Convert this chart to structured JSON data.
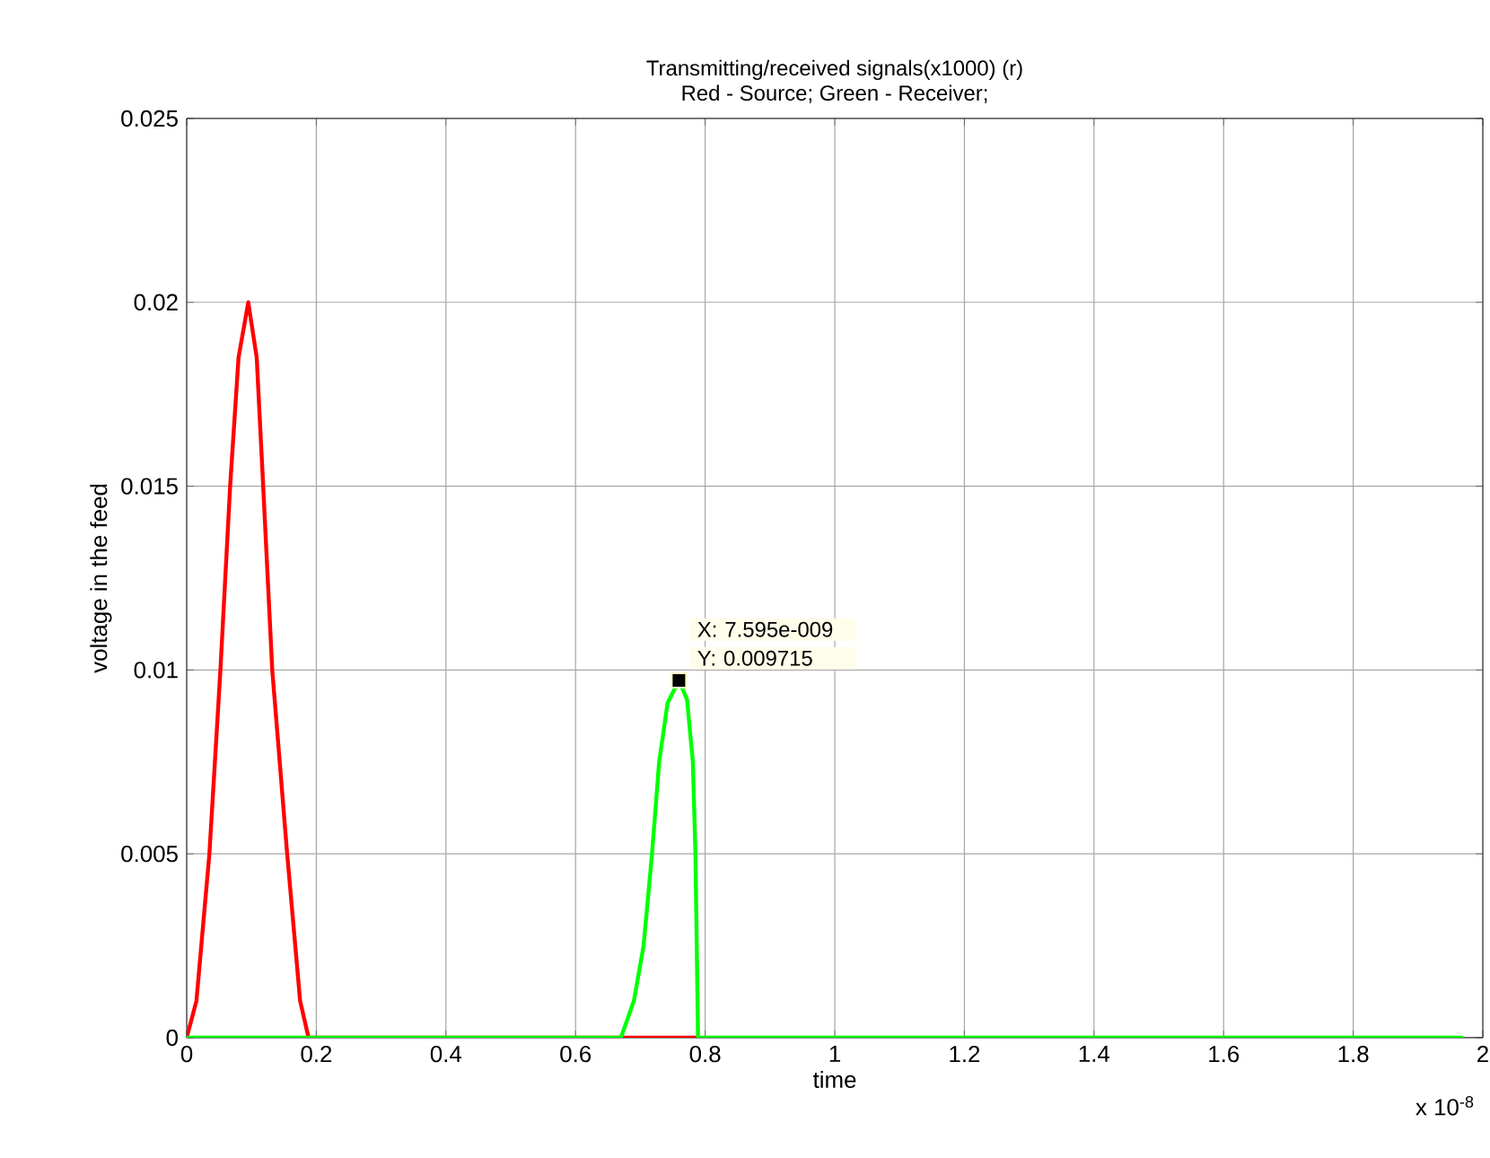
{
  "chart_data": {
    "type": "line",
    "title": "Transmitting/received signals(x1000) (r)",
    "subtitle": "Red - Source; Green - Receiver;",
    "xlabel": "time",
    "ylabel": "voltage in the feed",
    "series": [
      {
        "color": "#ff0000",
        "x": [
          0,
          0.015,
          0.035,
          0.052,
          0.067,
          0.08,
          0.095,
          0.108,
          0.118,
          0.132,
          0.155,
          0.175,
          0.188,
          0.787
        ],
        "values": [
          0,
          0.001,
          0.005,
          0.01,
          0.015,
          0.0185,
          0.02,
          0.0185,
          0.015,
          0.01,
          0.005,
          0.001,
          0,
          0
        ]
      },
      {
        "color": "#00ff00",
        "x": [
          0,
          0.67,
          0.69,
          0.705,
          0.718,
          0.729,
          0.742,
          0.7595,
          0.772,
          0.781,
          0.785,
          0.789,
          1.97
        ],
        "values": [
          0,
          0,
          0.001,
          0.0025,
          0.005,
          0.0075,
          0.0091,
          0.009715,
          0.0092,
          0.0075,
          0.005,
          0,
          0
        ]
      }
    ],
    "xlim": [
      0,
      2
    ],
    "ylim": [
      0,
      0.025
    ],
    "xticks": [
      0,
      0.2,
      0.4,
      0.6,
      0.8,
      1,
      1.2,
      1.4,
      1.6,
      1.8,
      2
    ],
    "yticks": [
      0,
      0.005,
      0.01,
      0.015,
      0.02,
      0.025
    ],
    "grid": true,
    "annotations": [
      "x 10$^{-8}$",
      {
        "text": "X: 7.595e-009",
        "x": 0.7595,
        "y": 0.009715
      },
      {
        "text": "Y: 0.009715",
        "x": 0.7595,
        "y": 0.009715
      }
    ]
  }
}
